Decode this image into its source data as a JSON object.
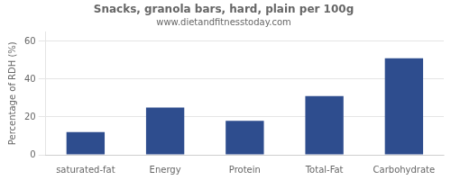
{
  "chart_data": {
    "type": "bar",
    "title": "Snacks, granola bars, hard, plain per 100g",
    "subtitle": "www.dietandfitnesstoday.com",
    "ylabel": "Percentage of RDH (%)",
    "categories": [
      "saturated-fat",
      "Energy",
      "Protein",
      "Total-Fat",
      "Carbohydrate"
    ],
    "values": [
      12,
      25,
      18,
      31,
      51
    ],
    "color": "#2e4d8e",
    "ylim": [
      0,
      65
    ],
    "yticks": [
      0,
      20,
      40,
      60
    ],
    "grid": true
  }
}
